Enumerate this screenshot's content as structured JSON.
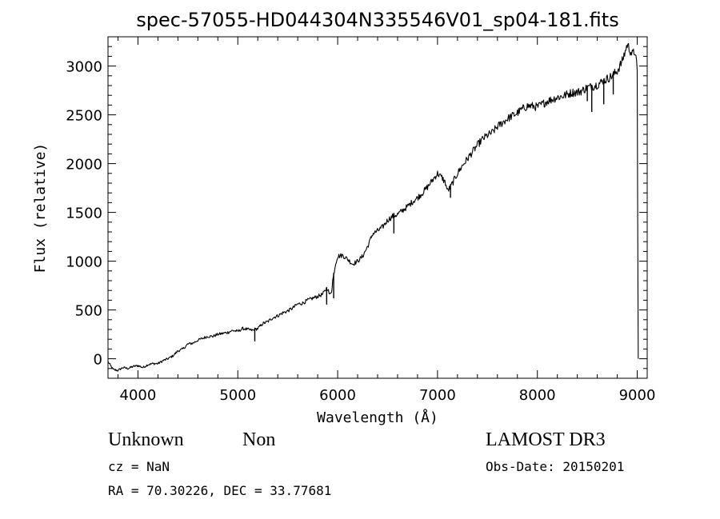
{
  "chart_data": {
    "type": "line",
    "title": "spec-57055-HD044304N335546V01_sp04-181.fits",
    "xlabel": "Wavelength (Å)",
    "ylabel": "Flux (relative)",
    "xlim": [
      3700,
      9100
    ],
    "ylim": [
      -200,
      3300
    ],
    "xticks": [
      4000,
      5000,
      6000,
      7000,
      8000,
      9000
    ],
    "yticks": [
      0,
      500,
      1000,
      1500,
      2000,
      2500,
      3000
    ],
    "series": [
      {
        "name": "Flux",
        "x": [
          3700,
          3750,
          3800,
          3850,
          3900,
          3950,
          4000,
          4050,
          4100,
          4150,
          4200,
          4250,
          4300,
          4350,
          4400,
          4450,
          4500,
          4550,
          4600,
          4650,
          4700,
          4750,
          4800,
          4850,
          4900,
          4950,
          5000,
          5050,
          5100,
          5150,
          5200,
          5250,
          5300,
          5350,
          5400,
          5450,
          5500,
          5550,
          5600,
          5650,
          5700,
          5750,
          5800,
          5850,
          5880,
          5900,
          5920,
          5940,
          5950,
          5960,
          5980,
          6000,
          6050,
          6100,
          6150,
          6200,
          6250,
          6300,
          6320,
          6350,
          6400,
          6450,
          6500,
          6550,
          6600,
          6650,
          6700,
          6750,
          6800,
          6850,
          6900,
          6950,
          7000,
          7050,
          7080,
          7100,
          7130,
          7150,
          7200,
          7250,
          7300,
          7350,
          7400,
          7450,
          7500,
          7550,
          7600,
          7650,
          7700,
          7750,
          7800,
          7850,
          7900,
          7950,
          8000,
          8050,
          8100,
          8150,
          8200,
          8250,
          8300,
          8350,
          8400,
          8450,
          8500,
          8550,
          8600,
          8650,
          8700,
          8750,
          8800,
          8850,
          8880,
          8900,
          8950,
          8980,
          9000,
          9010
        ],
        "y": [
          -30,
          -110,
          -120,
          -90,
          -100,
          -80,
          -70,
          -90,
          -60,
          -50,
          -50,
          -20,
          0,
          30,
          80,
          100,
          150,
          160,
          190,
          210,
          230,
          230,
          250,
          260,
          270,
          290,
          280,
          310,
          300,
          290,
          310,
          360,
          380,
          420,
          440,
          470,
          490,
          520,
          560,
          570,
          600,
          620,
          640,
          660,
          710,
          720,
          650,
          700,
          800,
          860,
          980,
          1050,
          1060,
          1020,
          970,
          1000,
          1050,
          1150,
          1200,
          1280,
          1310,
          1350,
          1420,
          1460,
          1480,
          1520,
          1560,
          1610,
          1650,
          1700,
          1760,
          1830,
          1900,
          1850,
          1800,
          1720,
          1760,
          1800,
          1900,
          1980,
          2050,
          2120,
          2190,
          2250,
          2290,
          2320,
          2380,
          2420,
          2460,
          2490,
          2520,
          2560,
          2590,
          2590,
          2580,
          2610,
          2640,
          2660,
          2680,
          2690,
          2710,
          2730,
          2730,
          2750,
          2780,
          2790,
          2810,
          2840,
          2870,
          2900,
          2950,
          3050,
          3150,
          3220,
          3120,
          3150,
          2950,
          0
        ],
        "absorption_lines": [
          {
            "x": 5170,
            "depth": 120
          },
          {
            "x": 5890,
            "depth": 160
          },
          {
            "x": 5960,
            "depth": 240
          },
          {
            "x": 6563,
            "depth": 180
          },
          {
            "x": 7130,
            "depth": 110
          },
          {
            "x": 8500,
            "depth": 140
          },
          {
            "x": 8545,
            "depth": 260
          },
          {
            "x": 8665,
            "depth": 240
          },
          {
            "x": 8760,
            "depth": 200
          }
        ]
      }
    ]
  },
  "info": {
    "object_name": "Unknown",
    "object_class": "Non",
    "survey": "LAMOST DR3",
    "cz": "cz = NaN",
    "obs_date": "Obs-Date: 20150201",
    "coords": "RA =  70.30226, DEC =  33.77681"
  }
}
